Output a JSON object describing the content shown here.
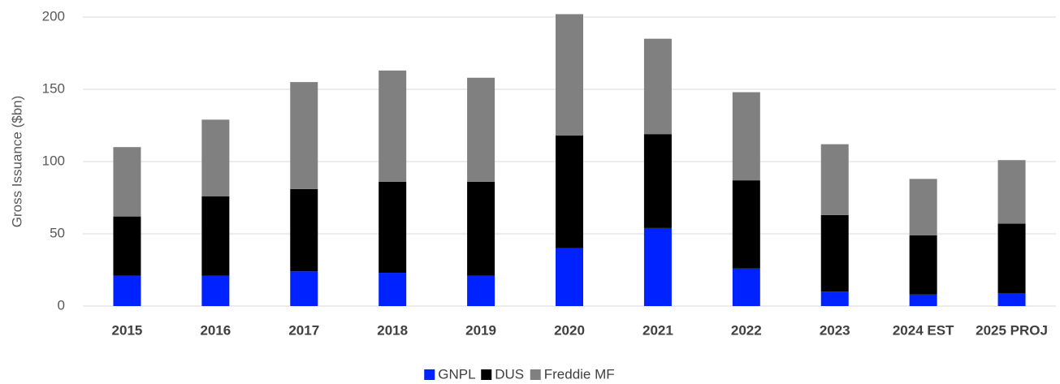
{
  "chart_data": {
    "type": "stacked_bar",
    "y_label": "Gross Issuance ($bn)",
    "categories": [
      "2015",
      "2016",
      "2017",
      "2018",
      "2019",
      "2020",
      "2021",
      "2022",
      "2023",
      "2024 EST",
      "2025 PROJ"
    ],
    "series": [
      {
        "name": "GNPL",
        "color": "#0022ff",
        "values": [
          21,
          21,
          24,
          23,
          21,
          40,
          54,
          26,
          10,
          8,
          9
        ]
      },
      {
        "name": "DUS",
        "color": "#000000",
        "values": [
          41,
          55,
          57,
          63,
          65,
          78,
          65,
          61,
          53,
          41,
          48
        ]
      },
      {
        "name": "Freddie MF",
        "color": "#808080",
        "values": [
          48,
          53,
          74,
          77,
          72,
          84,
          66,
          61,
          49,
          39,
          44
        ]
      }
    ],
    "ylim": [
      0,
      200
    ],
    "yticks": [
      0,
      50,
      100,
      150,
      200
    ],
    "grid": true
  }
}
